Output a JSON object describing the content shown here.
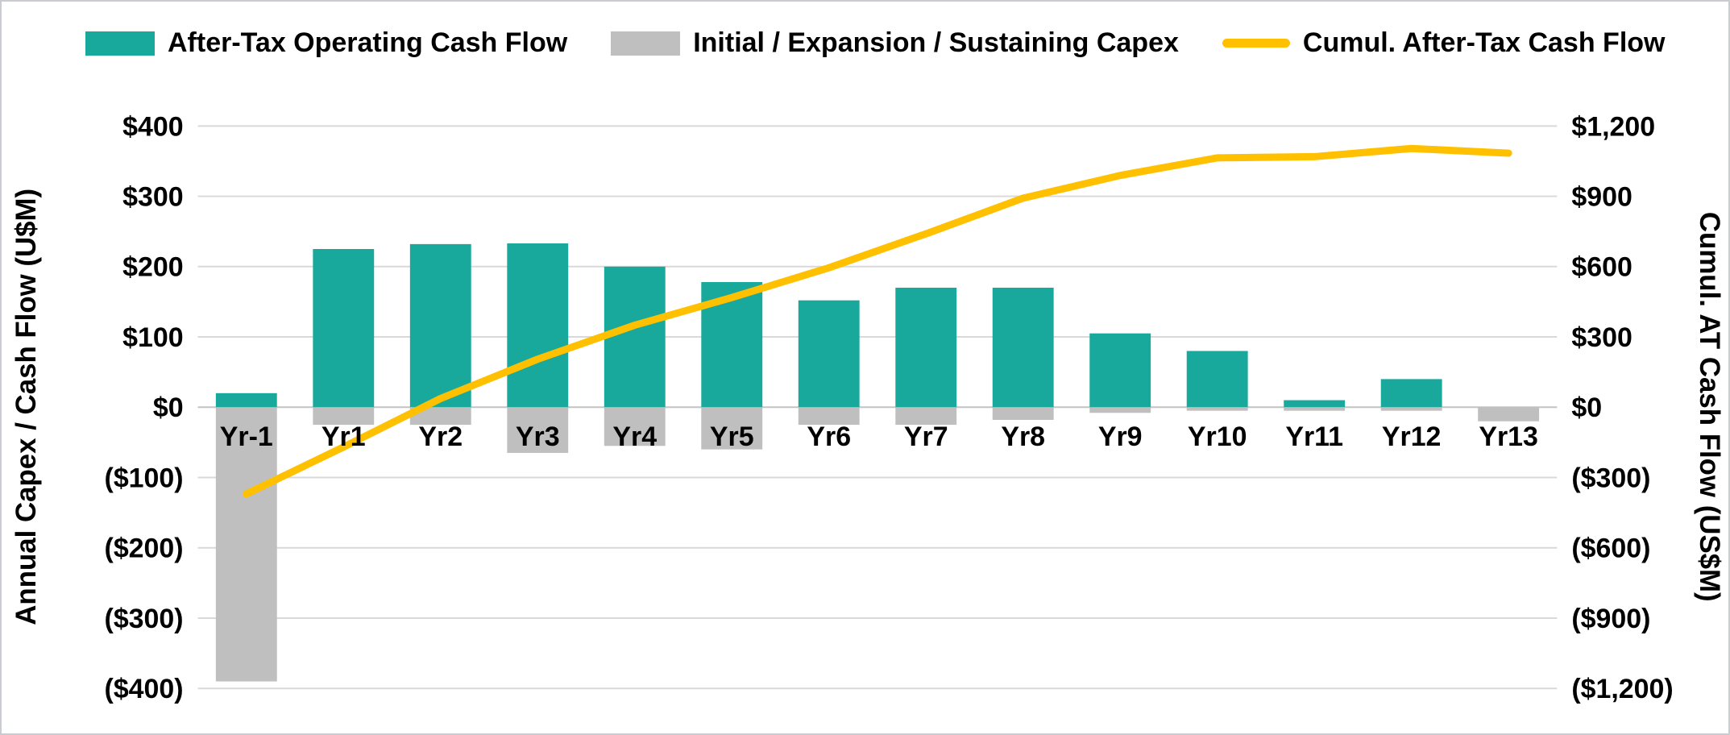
{
  "chart_data": {
    "type": "combo-bar-line",
    "title": "",
    "categories": [
      "Yr-1",
      "Yr1",
      "Yr2",
      "Yr3",
      "Yr4",
      "Yr5",
      "Yr6",
      "Yr7",
      "Yr8",
      "Yr9",
      "Yr10",
      "Yr11",
      "Yr12",
      "Yr13"
    ],
    "series": [
      {
        "key": "operating-cash-flow",
        "name": "After-Tax Operating Cash Flow",
        "type": "bar",
        "axis": "left",
        "color": "#19A99C",
        "values": [
          20,
          225,
          232,
          233,
          200,
          178,
          152,
          170,
          170,
          105,
          80,
          10,
          40,
          0
        ]
      },
      {
        "key": "capex",
        "name": "Initial / Expansion / Sustaining Capex",
        "type": "bar",
        "axis": "left",
        "color": "#BFBFBF",
        "values": [
          -390,
          -25,
          -25,
          -65,
          -55,
          -60,
          -25,
          -25,
          -18,
          -8,
          -5,
          -5,
          -5,
          -20
        ]
      },
      {
        "key": "cumulative-cash-flow",
        "name": "Cumul. After-Tax Cash Flow",
        "type": "line",
        "axis": "right",
        "color": "#FFC000",
        "values": [
          -370,
          -170,
          37,
          205,
          350,
          468,
          595,
          740,
          892,
          989,
          1064,
          1069,
          1104,
          1084
        ]
      }
    ],
    "left_axis": {
      "title": "Annual Capex / Cash Flow (U$M)",
      "min": -400,
      "max": 400,
      "step": 100,
      "tick_labels": [
        "$400",
        "$300",
        "$200",
        "$100",
        "$0",
        "($100)",
        "($200)",
        "($300)",
        "($400)"
      ]
    },
    "right_axis": {
      "title": "Cumul. AT Cash Flow (US$M)",
      "min": -1200,
      "max": 1200,
      "step": 300,
      "tick_labels": [
        "$1,200",
        "$900",
        "$600",
        "$300",
        "$0",
        "($300)",
        "($600)",
        "($900)",
        "($1,200)"
      ]
    },
    "grid": true,
    "legend_position": "top",
    "colors": {
      "gridline": "#D9D9D9",
      "zero_line": "#C3C3C3",
      "text": "#000000",
      "background": "#FFFFFF",
      "frame_border": "#C9CDD1"
    }
  }
}
